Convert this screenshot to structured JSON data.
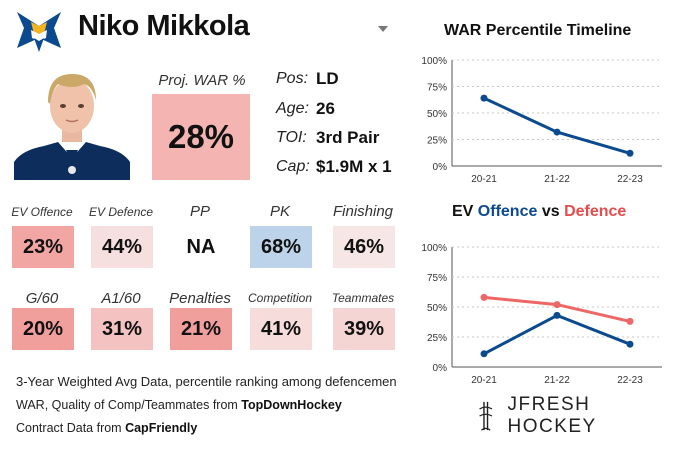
{
  "player": {
    "name": "Niko Mikkola",
    "pos_label": "Pos:",
    "pos": "LD",
    "age_label": "Age:",
    "age": "26",
    "toi_label": "TOI:",
    "toi": "3rd Pair",
    "cap_label": "Cap:",
    "cap": "$1.9M x 1"
  },
  "war": {
    "label": "Proj. WAR %",
    "value": "28%",
    "color": "#f4b4b2"
  },
  "metrics": [
    {
      "label": "EV Offence",
      "value": "23%",
      "color": "#f1a6a4"
    },
    {
      "label": "EV Defence",
      "value": "44%",
      "color": "#f6e0df"
    },
    {
      "label": "PP",
      "value": "NA",
      "color": "#ffffff"
    },
    {
      "label": "PK",
      "value": "68%",
      "color": "#bcd3ea"
    },
    {
      "label": "Finishing",
      "value": "46%",
      "color": "#f6e6e5"
    },
    {
      "label": "G/60",
      "value": "20%",
      "color": "#f19f9d"
    },
    {
      "label": "A1/60",
      "value": "31%",
      "color": "#f4c2c0"
    },
    {
      "label": "Penalties",
      "value": "21%",
      "color": "#f19f9d"
    },
    {
      "label": "Competition",
      "value": "41%",
      "color": "#f6dcdb"
    },
    {
      "label": "Teammates",
      "value": "39%",
      "color": "#f5d5d4"
    }
  ],
  "footer": {
    "line1": "3-Year Weighted Avg Data, percentile ranking among defencemen",
    "line2_prefix": "WAR, Quality of Comp/Teammates from ",
    "line2_source": "TopDownHockey",
    "line3_prefix": "Contract Data from ",
    "line3_source": "CapFriendly",
    "brand": "JFRESH HOCKEY"
  },
  "chart_data": [
    {
      "type": "line",
      "title": "WAR Percentile Timeline",
      "categories": [
        "20-21",
        "21-22",
        "22-23"
      ],
      "series": [
        {
          "values": [
            64,
            32,
            12
          ],
          "color": "#0b4a8f"
        }
      ],
      "ylim": [
        0,
        100
      ],
      "yticks": [
        "0%",
        "25%",
        "50%",
        "75%",
        "100%"
      ],
      "grid": "horizontal dashed"
    },
    {
      "type": "line",
      "title_parts": [
        "EV ",
        "Offence",
        " vs ",
        "Defence"
      ],
      "title_colors": [
        "#111111",
        "#0b4a8f",
        "#111111",
        "#e74c4c"
      ],
      "categories": [
        "20-21",
        "21-22",
        "22-23"
      ],
      "series": [
        {
          "values": [
            58,
            52,
            38
          ],
          "color": "#ee6666"
        },
        {
          "values": [
            11,
            43,
            19
          ],
          "color": "#0b4a8f"
        }
      ],
      "ylim": [
        0,
        100
      ],
      "yticks": [
        "0%",
        "25%",
        "50%",
        "75%",
        "100%"
      ],
      "grid": "horizontal dashed"
    }
  ]
}
